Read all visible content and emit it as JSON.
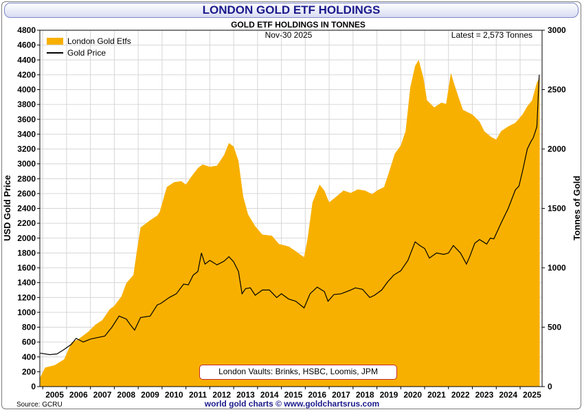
{
  "page": {
    "title": "LONDON GOLD ETF HOLDINGS",
    "footer": "world gold charts © www.goldchartsrus.com",
    "source": "Source: GCRU",
    "vault_note": "London Vaults: Brinks, HSBC, Loomis, JPM"
  },
  "chart_data": {
    "type": "area",
    "title": "GOLD ETF HOLDINGS IN TONNES",
    "date_label": "Nov-30  2025",
    "latest_label": "Latest = 2,573 Tonnes",
    "ylabel_left": "USD Gold Price",
    "ylabel_right": "Tonnes of Gold",
    "ylim_left": [
      0,
      4800
    ],
    "ylim_right": [
      0,
      3000
    ],
    "xlim": [
      2004.88,
      2025.92
    ],
    "yticks_left": [
      "0",
      "200",
      "400",
      "600",
      "800",
      "1000",
      "1200",
      "1400",
      "1600",
      "1800",
      "2000",
      "2200",
      "2400",
      "2600",
      "2800",
      "3000",
      "3200",
      "3400",
      "3600",
      "3800",
      "4000",
      "4200",
      "4400",
      "4600",
      "4800"
    ],
    "yticks_right": [
      "0",
      "500",
      "1000",
      "1500",
      "2000",
      "2500",
      "3000"
    ],
    "xticks": [
      "2005",
      "2006",
      "2007",
      "2008",
      "2009",
      "2010",
      "2011",
      "2012",
      "2013",
      "2014",
      "2015",
      "2016",
      "2017",
      "2018",
      "2019",
      "2020",
      "2021",
      "2022",
      "2023",
      "2024",
      "2025"
    ],
    "legend": [
      "London Gold Etfs",
      "Gold Price"
    ],
    "colors": {
      "etf_area": "#f8b000",
      "price_line": "#000000",
      "grid": "#d6d6d6"
    },
    "series": [
      {
        "name": "London Gold Etfs",
        "axis": "right",
        "x": [
          2004.9,
          2005.1,
          2005.5,
          2005.9,
          2006.2,
          2006.5,
          2006.9,
          2007.2,
          2007.5,
          2007.8,
          2008.0,
          2008.3,
          2008.5,
          2008.8,
          2008.95,
          2009.1,
          2009.5,
          2009.8,
          2009.9,
          2010.2,
          2010.5,
          2010.8,
          2011.0,
          2011.2,
          2011.5,
          2011.7,
          2012.0,
          2012.3,
          2012.6,
          2012.8,
          2013.0,
          2013.2,
          2013.4,
          2013.6,
          2013.9,
          2014.2,
          2014.6,
          2014.9,
          2015.3,
          2015.6,
          2015.8,
          2015.95,
          2016.1,
          2016.3,
          2016.6,
          2016.8,
          2017.0,
          2017.3,
          2017.6,
          2017.9,
          2018.2,
          2018.5,
          2018.8,
          2019.0,
          2019.3,
          2019.5,
          2019.75,
          2020.0,
          2020.2,
          2020.4,
          2020.6,
          2020.75,
          2020.95,
          2021.1,
          2021.4,
          2021.7,
          2021.9,
          2022.1,
          2022.2,
          2022.4,
          2022.6,
          2022.8,
          2023.0,
          2023.3,
          2023.5,
          2023.8,
          2024.0,
          2024.2,
          2024.5,
          2024.8,
          2025.1,
          2025.3,
          2025.5,
          2025.7,
          2025.82
        ],
        "values": [
          80,
          160,
          180,
          230,
          370,
          400,
          460,
          520,
          560,
          650,
          680,
          760,
          870,
          940,
          1150,
          1340,
          1400,
          1440,
          1470,
          1680,
          1720,
          1730,
          1700,
          1760,
          1840,
          1870,
          1850,
          1860,
          1950,
          2050,
          2020,
          1900,
          1600,
          1450,
          1350,
          1280,
          1270,
          1200,
          1180,
          1140,
          1110,
          1090,
          1250,
          1550,
          1700,
          1650,
          1550,
          1600,
          1650,
          1630,
          1660,
          1650,
          1620,
          1650,
          1680,
          1800,
          1960,
          2030,
          2150,
          2520,
          2700,
          2750,
          2600,
          2410,
          2350,
          2390,
          2380,
          2640,
          2570,
          2450,
          2330,
          2310,
          2290,
          2230,
          2150,
          2100,
          2080,
          2150,
          2190,
          2220,
          2290,
          2360,
          2410,
          2560,
          2600
        ]
      },
      {
        "name": "Gold Price",
        "axis": "left",
        "x": [
          2004.9,
          2005.3,
          2005.6,
          2005.9,
          2006.2,
          2006.4,
          2006.7,
          2007.0,
          2007.3,
          2007.6,
          2007.9,
          2008.2,
          2008.5,
          2008.7,
          2008.85,
          2009.1,
          2009.5,
          2009.8,
          2009.95,
          2010.3,
          2010.6,
          2010.9,
          2011.1,
          2011.3,
          2011.5,
          2011.65,
          2011.8,
          2012.0,
          2012.3,
          2012.6,
          2012.8,
          2013.0,
          2013.2,
          2013.35,
          2013.5,
          2013.7,
          2013.9,
          2014.2,
          2014.5,
          2014.8,
          2015.0,
          2015.3,
          2015.6,
          2015.95,
          2016.2,
          2016.5,
          2016.8,
          2016.95,
          2017.2,
          2017.5,
          2017.9,
          2018.1,
          2018.4,
          2018.7,
          2018.9,
          2019.2,
          2019.45,
          2019.7,
          2020.0,
          2020.3,
          2020.6,
          2020.8,
          2021.0,
          2021.2,
          2021.5,
          2021.8,
          2022.0,
          2022.2,
          2022.5,
          2022.75,
          2022.9,
          2023.1,
          2023.3,
          2023.6,
          2023.75,
          2023.9,
          2024.2,
          2024.5,
          2024.8,
          2024.95,
          2025.1,
          2025.3,
          2025.45,
          2025.55,
          2025.7,
          2025.8
        ],
        "values": [
          450,
          430,
          440,
          500,
          570,
          650,
          600,
          640,
          660,
          680,
          800,
          950,
          910,
          820,
          760,
          930,
          950,
          1100,
          1120,
          1200,
          1250,
          1380,
          1370,
          1500,
          1550,
          1800,
          1650,
          1700,
          1640,
          1690,
          1750,
          1680,
          1550,
          1250,
          1320,
          1330,
          1230,
          1300,
          1300,
          1200,
          1250,
          1180,
          1150,
          1060,
          1250,
          1340,
          1280,
          1150,
          1240,
          1250,
          1300,
          1330,
          1310,
          1200,
          1230,
          1300,
          1410,
          1500,
          1560,
          1700,
          1950,
          1900,
          1860,
          1730,
          1800,
          1780,
          1800,
          1900,
          1800,
          1650,
          1760,
          1930,
          1980,
          1920,
          2000,
          1990,
          2200,
          2400,
          2650,
          2700,
          2900,
          3200,
          3300,
          3350,
          3500,
          4200
        ]
      }
    ]
  }
}
